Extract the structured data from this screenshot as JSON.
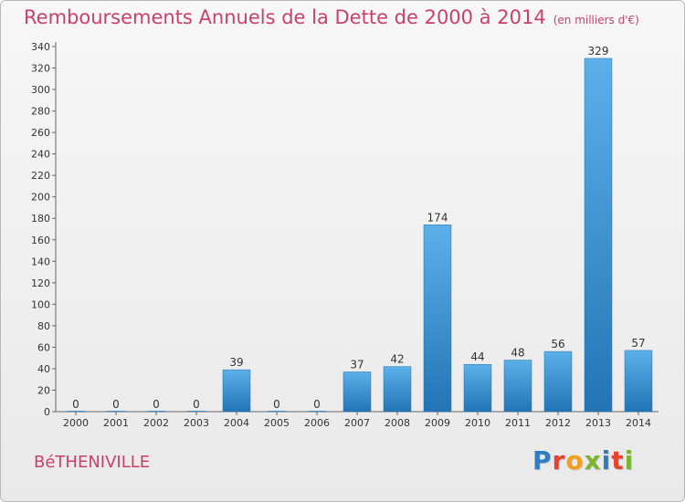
{
  "header": {
    "title": "Remboursements Annuels de la Dette de 2000 à 2014",
    "unit_note": "(en milliers d'€)"
  },
  "footer": {
    "commune": "BéTHENIVILLE",
    "logo_letters": [
      "P",
      "r",
      "o",
      "x",
      "i",
      "t",
      "i"
    ],
    "logo_colors": [
      "#2e7fc1",
      "#e8412d",
      "#f2a11e",
      "#7cb62e",
      "#2e7fc1",
      "#e8412d",
      "#7cb62e"
    ]
  },
  "chart_data": {
    "type": "bar",
    "categories": [
      "2000",
      "2001",
      "2002",
      "2003",
      "2004",
      "2005",
      "2006",
      "2007",
      "2008",
      "2009",
      "2010",
      "2011",
      "2012",
      "2013",
      "2014"
    ],
    "values": [
      0,
      0,
      0,
      0,
      39,
      0,
      0,
      37,
      42,
      174,
      44,
      48,
      56,
      329,
      57
    ],
    "ylim": [
      0,
      340
    ],
    "yticks": [
      0,
      20,
      40,
      60,
      80,
      100,
      120,
      140,
      160,
      180,
      200,
      220,
      240,
      260,
      280,
      300,
      320,
      340
    ],
    "bar_color": "#3a95d8",
    "grid": false
  }
}
